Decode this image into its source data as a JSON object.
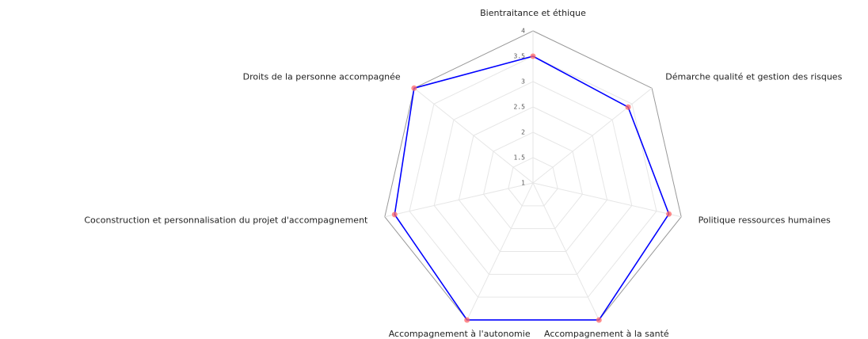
{
  "chart_data": {
    "type": "radar",
    "categories": [
      "Bientraitance et éthique",
      "Démarche qualité et gestion des risques",
      "Politique ressources humaines",
      "Accompagnement à la santé",
      "Accompagnement à l'autonomie",
      "Coconstruction et personnalisation du projet d'accompagnement",
      "Droits de la personne accompagnée"
    ],
    "series": [
      {
        "color": "#0000ff",
        "marker_color": "#ff6666",
        "values": [
          3.5,
          3.4,
          3.75,
          4,
          4,
          3.8,
          4
        ]
      }
    ],
    "ylim": [
      1,
      4
    ],
    "yticks": [
      1,
      1.5,
      2,
      2.5,
      3,
      3.5,
      4
    ],
    "grid": true
  }
}
